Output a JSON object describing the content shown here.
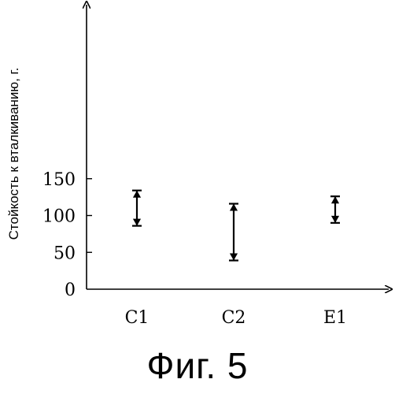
{
  "chart_data": {
    "type": "range",
    "ylabel": "Стойкость к вталкиванию, г.",
    "categories": [
      "C1",
      "C2",
      "E1"
    ],
    "ranges": [
      {
        "category": "C1",
        "low": 86,
        "high": 134
      },
      {
        "category": "C2",
        "low": 39,
        "high": 116
      },
      {
        "category": "E1",
        "low": 90,
        "high": 126
      }
    ],
    "yticks": [
      "0",
      "50",
      "100",
      "150"
    ],
    "ylim": [
      0,
      190
    ],
    "grid": false
  },
  "caption": "Фиг. 5"
}
